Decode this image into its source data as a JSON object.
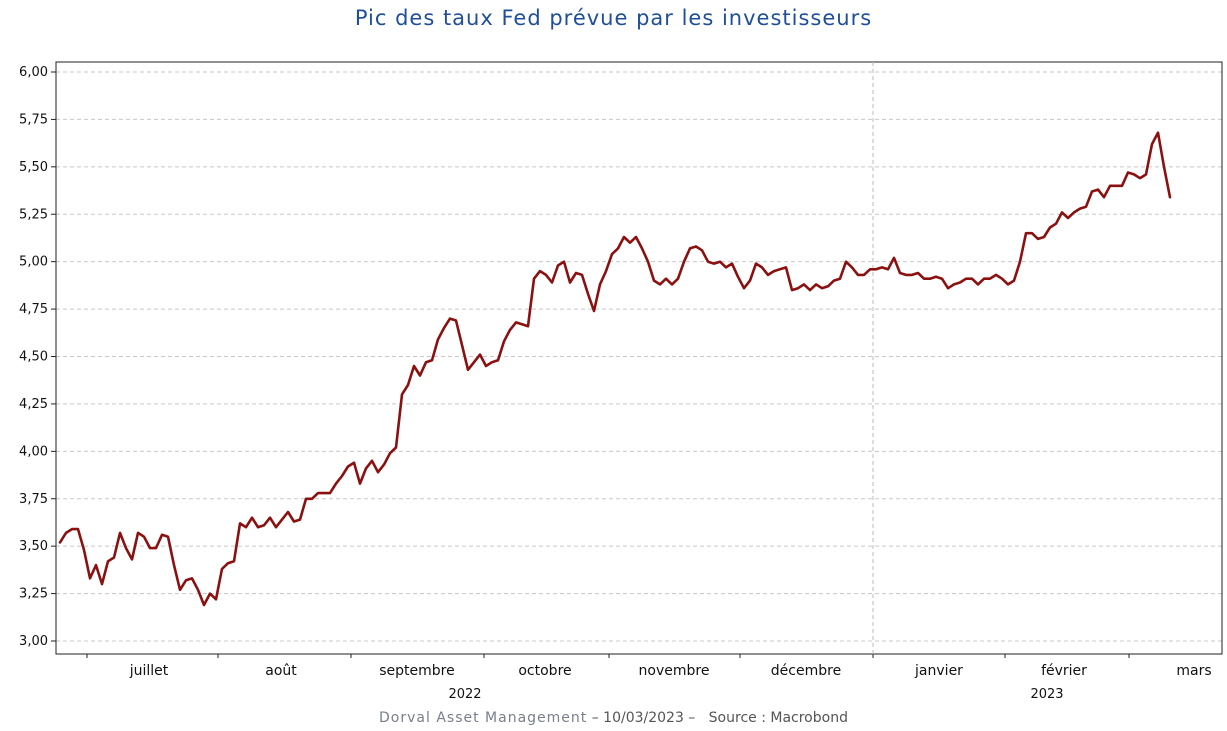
{
  "chart_data": {
    "type": "line",
    "title": "Pic des taux Fed prévue par les investisseurs",
    "xlabel": "",
    "ylabel": "",
    "ylim": [
      3.0,
      6.0
    ],
    "yticks": [
      "3,00",
      "3,25",
      "3,50",
      "3,75",
      "4,00",
      "4,25",
      "4,50",
      "4,75",
      "5,00",
      "5,25",
      "5,50",
      "5,75",
      "6,00"
    ],
    "months": [
      "juillet",
      "août",
      "septembre",
      "octobre",
      "novembre",
      "décembre",
      "janvier",
      "février",
      "mars"
    ],
    "years": [
      "2022",
      "2023"
    ],
    "grid": true,
    "series": [
      {
        "color": "#8b1010",
        "values": [
          3.52,
          3.57,
          3.59,
          3.59,
          3.48,
          3.33,
          3.4,
          3.3,
          3.42,
          3.44,
          3.57,
          3.49,
          3.43,
          3.57,
          3.55,
          3.49,
          3.49,
          3.56,
          3.55,
          3.4,
          3.27,
          3.32,
          3.33,
          3.27,
          3.19,
          3.25,
          3.22,
          3.38,
          3.41,
          3.42,
          3.62,
          3.6,
          3.65,
          3.6,
          3.61,
          3.65,
          3.6,
          3.64,
          3.68,
          3.63,
          3.64,
          3.75,
          3.75,
          3.78,
          3.78,
          3.78,
          3.83,
          3.87,
          3.92,
          3.94,
          3.83,
          3.91,
          3.95,
          3.89,
          3.93,
          3.99,
          4.02,
          4.3,
          4.35,
          4.45,
          4.4,
          4.47,
          4.48,
          4.59,
          4.65,
          4.7,
          4.69,
          4.56,
          4.43,
          4.47,
          4.51,
          4.45,
          4.47,
          4.48,
          4.58,
          4.64,
          4.68,
          4.67,
          4.66,
          4.91,
          4.95,
          4.93,
          4.89,
          4.98,
          5.0,
          4.89,
          4.94,
          4.93,
          4.83,
          4.74,
          4.88,
          4.95,
          5.04,
          5.07,
          5.13,
          5.1,
          5.13,
          5.07,
          5.0,
          4.9,
          4.88,
          4.91,
          4.88,
          4.91,
          5.0,
          5.07,
          5.08,
          5.06,
          5.0,
          4.99,
          5.0,
          4.97,
          4.99,
          4.92,
          4.86,
          4.9,
          4.99,
          4.97,
          4.93,
          4.95,
          4.96,
          4.97,
          4.85,
          4.86,
          4.88,
          4.85,
          4.88,
          4.86,
          4.87,
          4.9,
          4.91,
          5.0,
          4.97,
          4.93,
          4.93,
          4.96,
          4.96,
          4.97,
          4.96,
          5.02,
          4.94,
          4.93,
          4.93,
          4.94,
          4.91,
          4.91,
          4.92,
          4.91,
          4.86,
          4.88,
          4.89,
          4.91,
          4.91,
          4.88,
          4.91,
          4.91,
          4.93,
          4.91,
          4.88,
          4.9,
          5.0,
          5.15,
          5.15,
          5.12,
          5.13,
          5.18,
          5.2,
          5.26,
          5.23,
          5.26,
          5.28,
          5.29,
          5.37,
          5.38,
          5.34,
          5.4,
          5.4,
          5.4,
          5.47,
          5.46,
          5.44,
          5.46,
          5.62,
          5.68,
          5.5,
          5.34
        ]
      }
    ]
  },
  "footer": {
    "brand": "Dorval Asset Management",
    "date_text": "– 10/03/2023 –",
    "source": "Source : Macrobond"
  }
}
